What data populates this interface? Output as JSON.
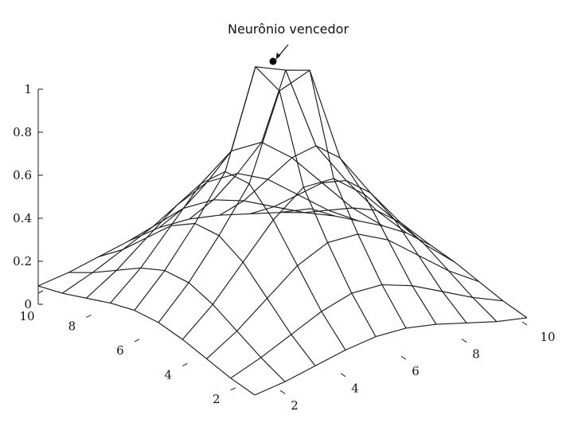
{
  "chart_data": {
    "type": "surface",
    "title": "",
    "xlabel": "",
    "ylabel": "",
    "zlabel": "",
    "x": [
      1,
      2,
      3,
      4,
      5,
      6,
      7,
      8,
      9,
      10
    ],
    "y": [
      1,
      2,
      3,
      4,
      5,
      6,
      7,
      8,
      9,
      10
    ],
    "function": "gaussian",
    "center": [
      6,
      6
    ],
    "z_values": [
      [
        0.03,
        0.05,
        0.08,
        0.11,
        0.13,
        0.13,
        0.11,
        0.08,
        0.05,
        0.03
      ],
      [
        0.05,
        0.1,
        0.16,
        0.22,
        0.26,
        0.26,
        0.22,
        0.16,
        0.1,
        0.05
      ],
      [
        0.08,
        0.16,
        0.26,
        0.36,
        0.42,
        0.42,
        0.36,
        0.26,
        0.16,
        0.08
      ],
      [
        0.11,
        0.22,
        0.36,
        0.5,
        0.6,
        0.6,
        0.5,
        0.36,
        0.22,
        0.11
      ],
      [
        0.13,
        0.26,
        0.42,
        0.6,
        0.95,
        1.0,
        0.6,
        0.42,
        0.26,
        0.13
      ],
      [
        0.13,
        0.26,
        0.42,
        0.6,
        1.0,
        0.95,
        0.6,
        0.42,
        0.26,
        0.13
      ],
      [
        0.11,
        0.22,
        0.36,
        0.5,
        0.6,
        0.6,
        0.5,
        0.36,
        0.22,
        0.11
      ],
      [
        0.08,
        0.16,
        0.26,
        0.36,
        0.42,
        0.42,
        0.36,
        0.26,
        0.16,
        0.08
      ],
      [
        0.05,
        0.1,
        0.16,
        0.22,
        0.26,
        0.26,
        0.22,
        0.16,
        0.1,
        0.05
      ],
      [
        0.03,
        0.05,
        0.08,
        0.11,
        0.13,
        0.13,
        0.11,
        0.08,
        0.05,
        0.03
      ]
    ],
    "zlim": [
      0,
      1
    ],
    "z_ticks": [
      "0",
      "0.2",
      "0.4",
      "0.6",
      "0.8",
      "1"
    ],
    "x_ticks": [
      "2",
      "4",
      "6",
      "8",
      "10"
    ],
    "y_ticks": [
      "2",
      "4",
      "6",
      "8",
      "10"
    ],
    "grid": false,
    "annotation": {
      "text": "Neurônio vencedor",
      "point": [
        6,
        6,
        1.0
      ]
    }
  }
}
